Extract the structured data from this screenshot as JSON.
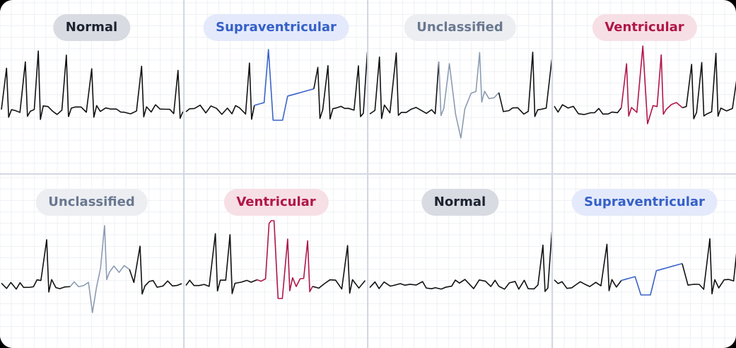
{
  "panels": [
    {
      "label": "Normal"
    },
    {
      "label": "Supraventricular"
    },
    {
      "label": "Unclassified"
    },
    {
      "label": "Ventricular"
    },
    {
      "label": "Unclassified"
    },
    {
      "label": "Ventricular"
    },
    {
      "label": "Normal"
    },
    {
      "label": "Supraventricular"
    }
  ]
}
